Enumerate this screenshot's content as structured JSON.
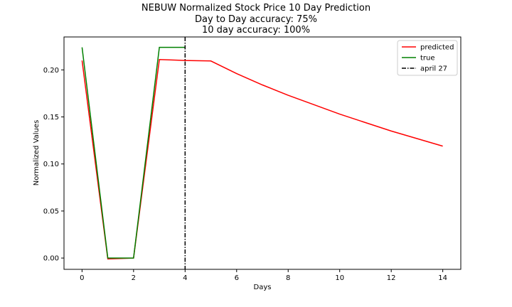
{
  "chart_data": {
    "type": "line",
    "title_lines": [
      "NEBUW Normalized Stock Price 10 Day Prediction",
      "Day to Day accuracy: 75%",
      "10 day accuracy: 100%"
    ],
    "xlabel": "Days",
    "ylabel": "Normalized Values",
    "xlim": [
      -0.7,
      14.7
    ],
    "ylim": [
      -0.012,
      0.235
    ],
    "xticks": [
      0,
      2,
      4,
      6,
      8,
      10,
      12,
      14
    ],
    "yticks": [
      0.0,
      0.05,
      0.1,
      0.15,
      0.2
    ],
    "ytick_labels": [
      "0.00",
      "0.05",
      "0.10",
      "0.15",
      "0.20"
    ],
    "grid": false,
    "legend_position": "top-right",
    "series": [
      {
        "name": "predicted",
        "color": "#ff0000",
        "x": [
          0,
          1,
          2,
          3,
          4,
          5,
          6,
          7,
          8,
          9,
          10,
          11,
          12,
          13,
          14
        ],
        "y": [
          0.21,
          -0.001,
          0.0,
          0.211,
          0.21,
          0.2095,
          0.196,
          0.184,
          0.173,
          0.163,
          0.153,
          0.144,
          0.135,
          0.127,
          0.119
        ]
      },
      {
        "name": "true",
        "color": "#008000",
        "x": [
          0,
          1,
          2,
          3,
          4
        ],
        "y": [
          0.224,
          0.0,
          0.0,
          0.224,
          0.224
        ]
      }
    ],
    "vline": {
      "name": "april 27",
      "x": 4,
      "color": "#000000",
      "style": "dashdot"
    }
  }
}
